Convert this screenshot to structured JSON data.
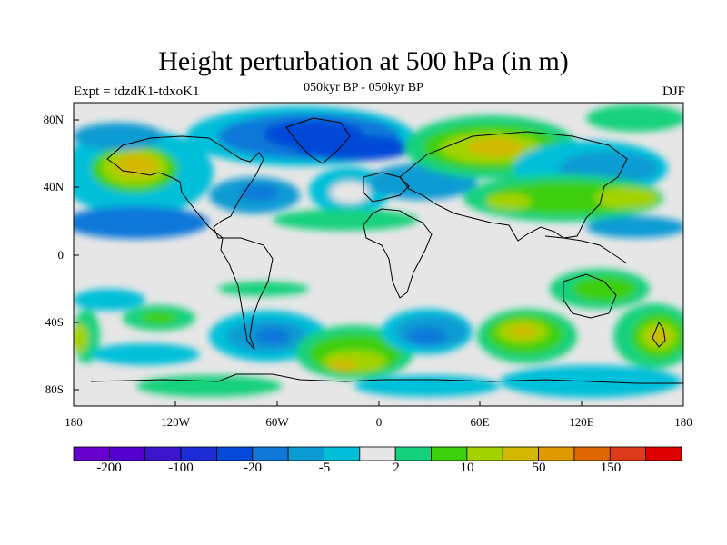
{
  "title": "Height perturbation at 500 hPa (in m)",
  "subtitle": "050kyr BP - 050kyr BP",
  "left_label": "Expt = tdzdK1-tdxoK1",
  "right_label": "DJF",
  "axes": {
    "y_ticks": [
      "80N",
      "40N",
      "0",
      "40S",
      "80S"
    ],
    "x_ticks": [
      "180",
      "120W",
      "60W",
      "0",
      "60E",
      "120E",
      "180"
    ]
  },
  "colorbar": {
    "colors": [
      "#6600cc",
      "#5500d0",
      "#3a17cf",
      "#1c2bd4",
      "#0549d8",
      "#0f78d9",
      "#0d9bd3",
      "#02bfd9",
      "#e6e6e6",
      "#14d17d",
      "#3ccf0c",
      "#a2d300",
      "#d2b800",
      "#de9a00",
      "#de6700",
      "#dd3a19",
      "#e10000"
    ],
    "labels": [
      "-200",
      "-100",
      "-20",
      "-5",
      "2",
      "10",
      "50",
      "150"
    ]
  }
}
